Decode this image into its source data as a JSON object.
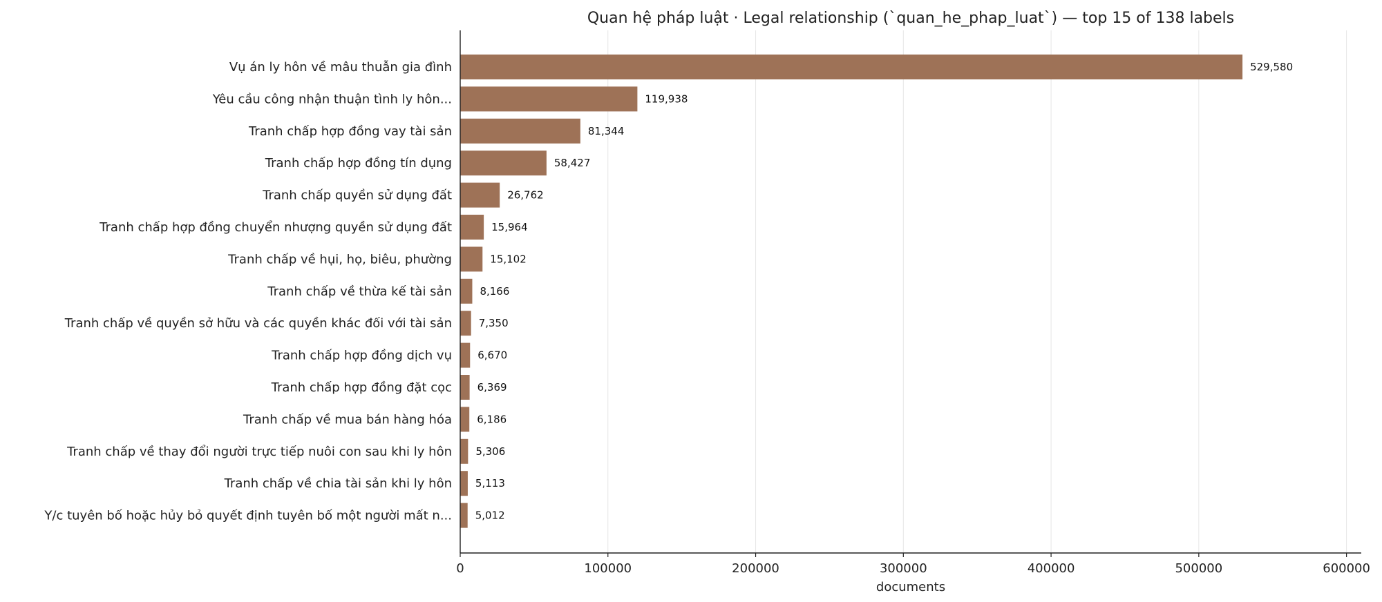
{
  "chart_data": {
    "type": "bar",
    "orientation": "horizontal",
    "title": "Quan hệ pháp luật · Legal relationship (`quan_he_phap_luat`) — top 15 of 138 labels",
    "xlabel": "documents",
    "ylabel": "",
    "xlim": [
      0,
      610000
    ],
    "xticks": [
      0,
      100000,
      200000,
      300000,
      400000,
      500000,
      600000
    ],
    "grid": "x",
    "bar_color": "#9e7257",
    "categories": [
      "Vụ án ly hôn về mâu thuẫn gia đình",
      "Yêu cầu công nhận thuận tình ly hôn...",
      "Tranh chấp hợp đồng vay tài sản",
      "Tranh chấp hợp đồng tín dụng",
      "Tranh chấp quyền sử dụng đất",
      "Tranh chấp hợp đồng chuyển nhượng quyền sử dụng đất",
      "Tranh chấp về hụi, họ, biêu, phường",
      "Tranh chấp về thừa kế tài sản",
      "Tranh chấp về quyền sở hữu và các quyền khác đối với tài sản",
      "Tranh chấp hợp đồng dịch vụ",
      "Tranh chấp hợp đồng đặt cọc",
      "Tranh chấp về mua bán hàng hóa",
      "Tranh chấp về thay đổi người trực tiếp nuôi con sau khi ly hôn",
      "Tranh chấp về chia tài sản khi ly hôn",
      "Y/c tuyên bố hoặc hủy bỏ quyết định tuyên bố một người mất n..."
    ],
    "values": [
      529580,
      119938,
      81344,
      58427,
      26762,
      15964,
      15102,
      8166,
      7350,
      6670,
      6369,
      6186,
      5306,
      5113,
      5012
    ],
    "value_labels": [
      "529,580",
      "119,938",
      "81,344",
      "58,427",
      "26,762",
      "15,964",
      "15,102",
      "8,166",
      "7,350",
      "6,670",
      "6,369",
      "6,186",
      "5,306",
      "5,113",
      "5,012"
    ]
  }
}
